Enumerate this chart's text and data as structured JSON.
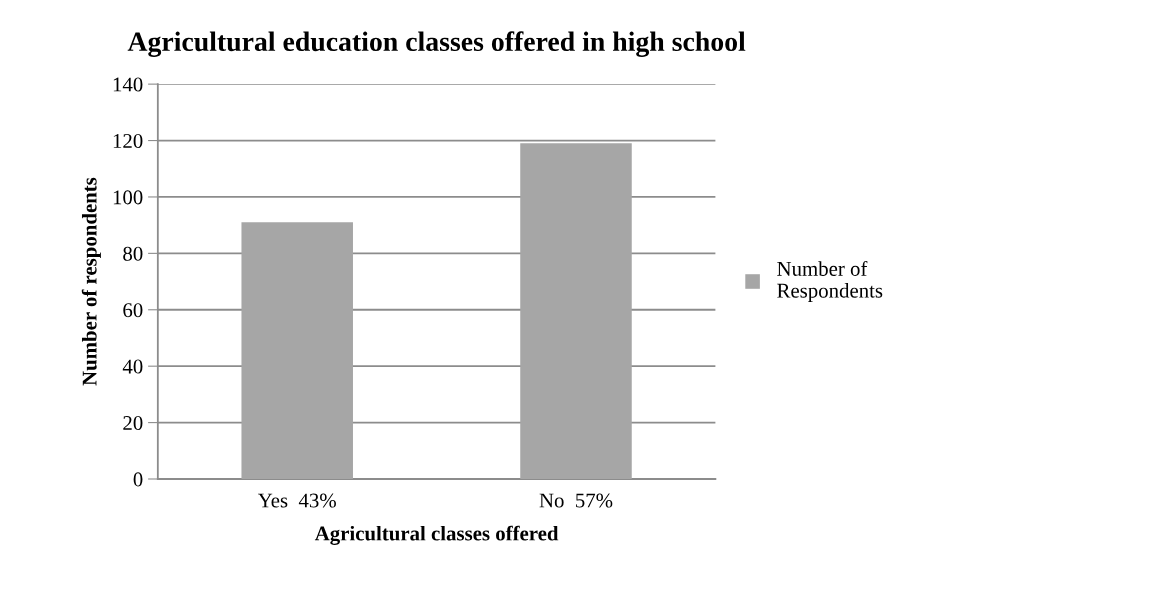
{
  "chart_data": {
    "type": "bar",
    "title": "Agricultural education classes offered in high school",
    "xlabel": "Agricultural classes offered",
    "ylabel": "Number of respondents",
    "categories": [
      "Yes  43%",
      "No  57%"
    ],
    "series": [
      {
        "name": "Number of\nRespondents",
        "color": "#a6a6a6",
        "values": [
          91,
          119
        ]
      }
    ],
    "ylim": [
      0,
      140
    ],
    "yticks": [
      0,
      20,
      40,
      60,
      80,
      100,
      120,
      140
    ],
    "grid": "y",
    "legend": "right"
  }
}
